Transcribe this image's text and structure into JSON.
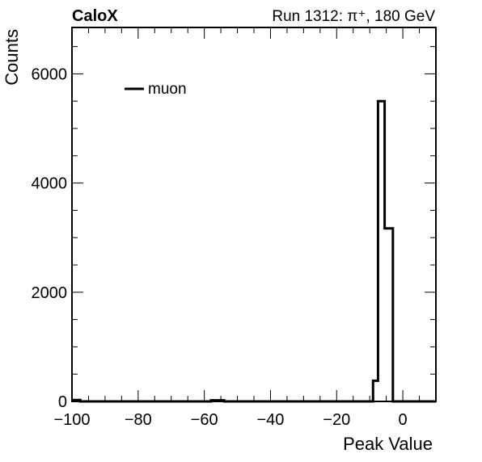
{
  "header": {
    "experiment": "CaloX",
    "run_info": "Run 1312:   π⁺, 180 GeV"
  },
  "chart_data": {
    "type": "histogram",
    "xlabel": "Peak Value",
    "ylabel": "Counts",
    "xlim": [
      -100,
      10
    ],
    "ylim": [
      0,
      6850
    ],
    "xticks": [
      -100,
      -80,
      -60,
      -40,
      -20,
      0
    ],
    "xtick_labels": [
      "−100",
      "−80",
      "−60",
      "−40",
      "−20",
      "0"
    ],
    "yticks": [
      0,
      2000,
      4000,
      6000
    ],
    "ytick_labels": [
      "0",
      "2000",
      "4000",
      "6000"
    ],
    "bin_width": 1.5,
    "legend": {
      "placement": "top-left",
      "entries": [
        {
          "label": "muon",
          "color": "#000000"
        }
      ]
    },
    "series": [
      {
        "name": "muon",
        "color": "#000000",
        "bins": [
          {
            "x0": -100.0,
            "x1": -97.5,
            "y": 25
          },
          {
            "x0": -97.5,
            "x1": -58.0,
            "y": 0
          },
          {
            "x0": -58.0,
            "x1": -54.0,
            "y": 20
          },
          {
            "x0": -54.0,
            "x1": -9.0,
            "y": 0
          },
          {
            "x0": -9.0,
            "x1": -7.5,
            "y": 380
          },
          {
            "x0": -7.5,
            "x1": -5.5,
            "y": 5500
          },
          {
            "x0": -5.5,
            "x1": -3.0,
            "y": 3170
          },
          {
            "x0": -3.0,
            "x1": 10.0,
            "y": 0
          }
        ]
      }
    ]
  }
}
